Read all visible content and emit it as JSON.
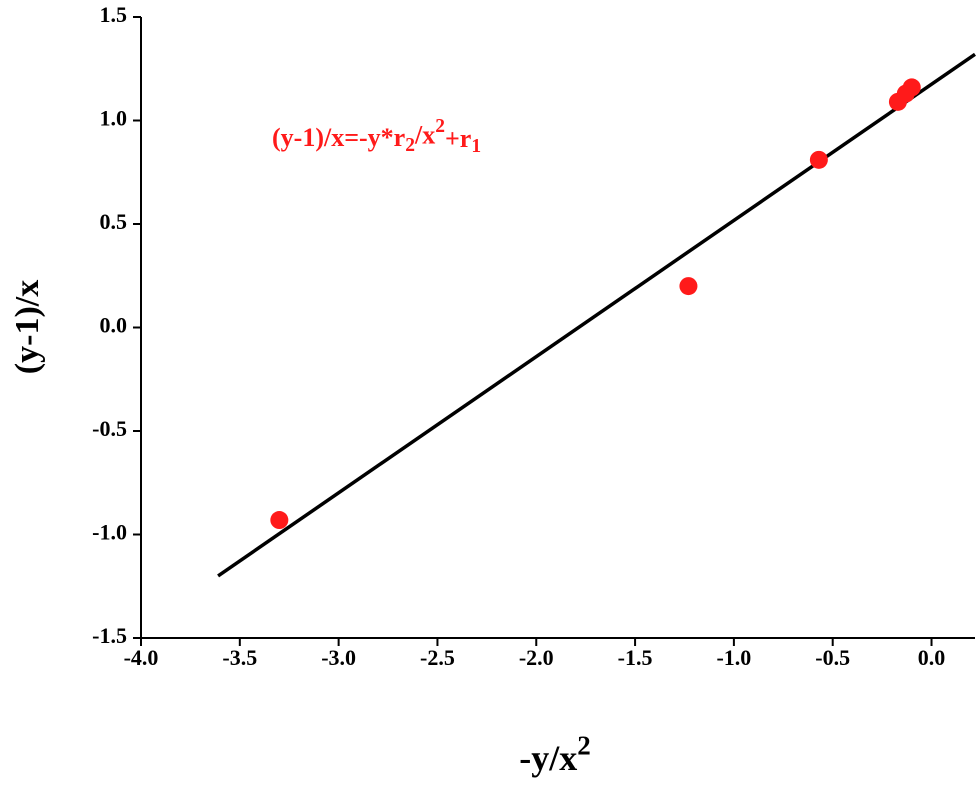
{
  "chart_data": {
    "type": "scatter",
    "x_label": [
      {
        "text": "-y/x"
      },
      {
        "sup": "2"
      }
    ],
    "y_label": "(y-1)/x",
    "annotation": [
      {
        "text": "(y-1)/x=-y*r"
      },
      {
        "sub": "2"
      },
      {
        "text": "/x"
      },
      {
        "sup": "2"
      },
      {
        "text": "+r"
      },
      {
        "sub": "1"
      }
    ],
    "annotation_color": "#ff1a1a",
    "points": {
      "x": [
        -3.3,
        -1.23,
        -0.57,
        -0.17,
        -0.13,
        -0.1
      ],
      "y": [
        -0.93,
        0.2,
        0.81,
        1.09,
        1.13,
        1.16
      ],
      "color": "#ff1a1a"
    },
    "fit_line": {
      "x": [
        -3.61,
        0.22
      ],
      "y": [
        -1.2,
        1.32
      ],
      "color": "#000000"
    },
    "xlim": [
      -4,
      0.22
    ],
    "ylim": [
      -1.5,
      1.5
    ],
    "xticks": [
      {
        "value": -4,
        "label": "-4.0"
      },
      -3.5,
      {
        "value": -3,
        "label": "-3.0"
      },
      -2.5,
      {
        "value": -2,
        "label": "-2.0"
      },
      -1.5,
      {
        "value": -1,
        "label": "-1.0"
      },
      -0.5,
      {
        "value": 0,
        "label": "0.0"
      }
    ],
    "yticks": [
      -1.5,
      {
        "value": -1,
        "label": "-1.0"
      },
      -0.5,
      {
        "value": 0,
        "label": "0.0"
      },
      0.5,
      {
        "value": 1,
        "label": "1.0"
      },
      1.5
    ]
  }
}
